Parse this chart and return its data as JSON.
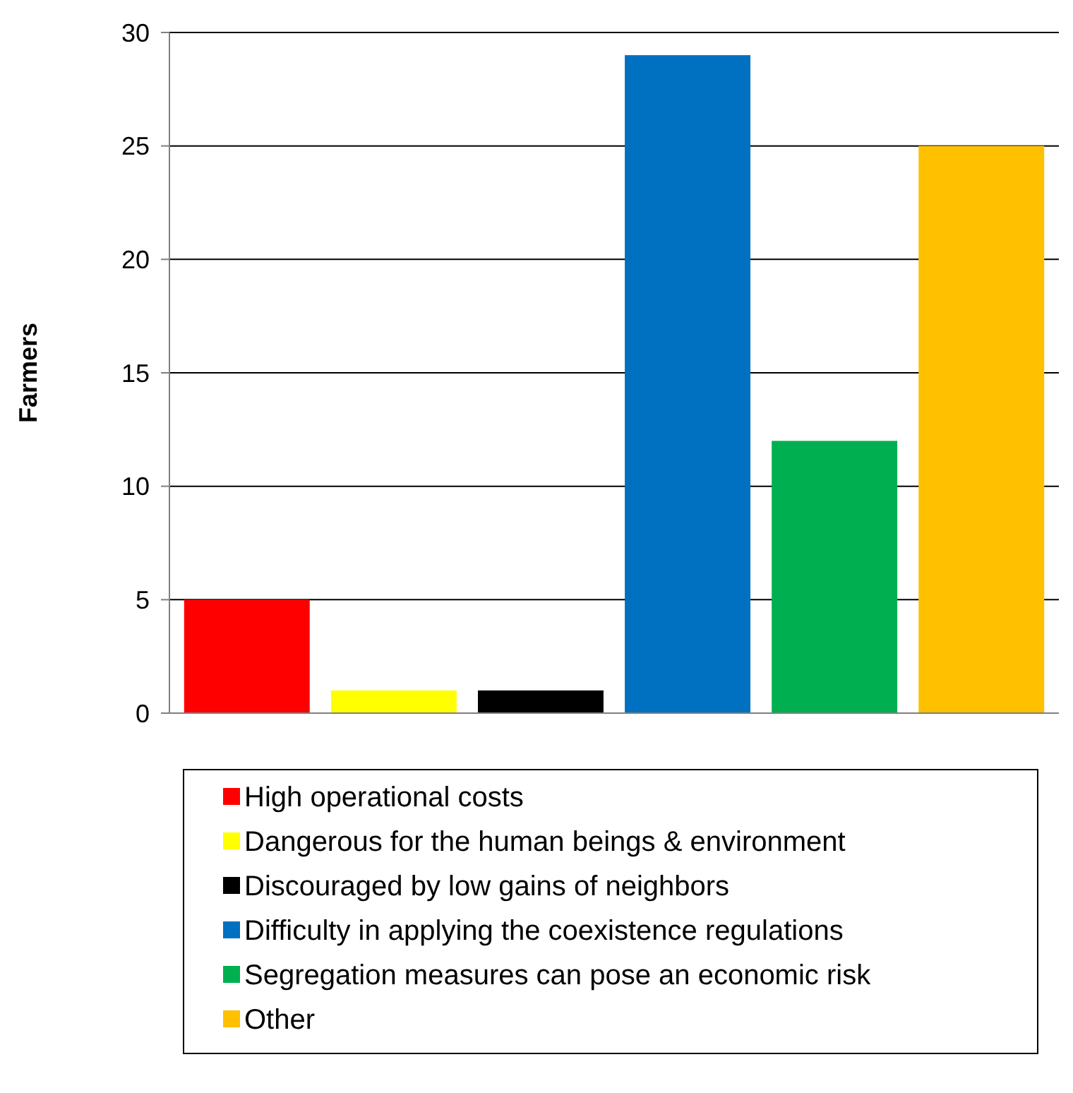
{
  "chart_data": {
    "type": "bar",
    "ylabel": "Farmers",
    "categories": [
      null,
      null,
      null,
      null,
      null,
      null
    ],
    "series": [
      {
        "name": "High operational costs",
        "color": "#ff0000",
        "values": [
          5,
          null,
          null,
          null,
          null,
          null
        ]
      },
      {
        "name": "Dangerous for the human beings & environment",
        "color": "#ffff00",
        "values": [
          null,
          1,
          null,
          null,
          null,
          null
        ]
      },
      {
        "name": "Discouraged by low gains of neighbors",
        "color": "#000000",
        "values": [
          null,
          null,
          1,
          null,
          null,
          null
        ]
      },
      {
        "name": "Difficulty in applying the coexistence regulations",
        "color": "#0070c0",
        "values": [
          null,
          null,
          null,
          29,
          null,
          null
        ]
      },
      {
        "name": "Segregation measures can pose an economic risk",
        "color": "#00b050",
        "values": [
          null,
          null,
          null,
          null,
          12,
          null
        ]
      },
      {
        "name": "Other",
        "color": "#ffc000",
        "values": [
          null,
          null,
          null,
          null,
          null,
          25
        ]
      }
    ],
    "ylim": [
      0,
      30
    ],
    "yticks": [
      0,
      5,
      10,
      15,
      20,
      25,
      30
    ],
    "grid": "y",
    "legend": "bottom"
  }
}
